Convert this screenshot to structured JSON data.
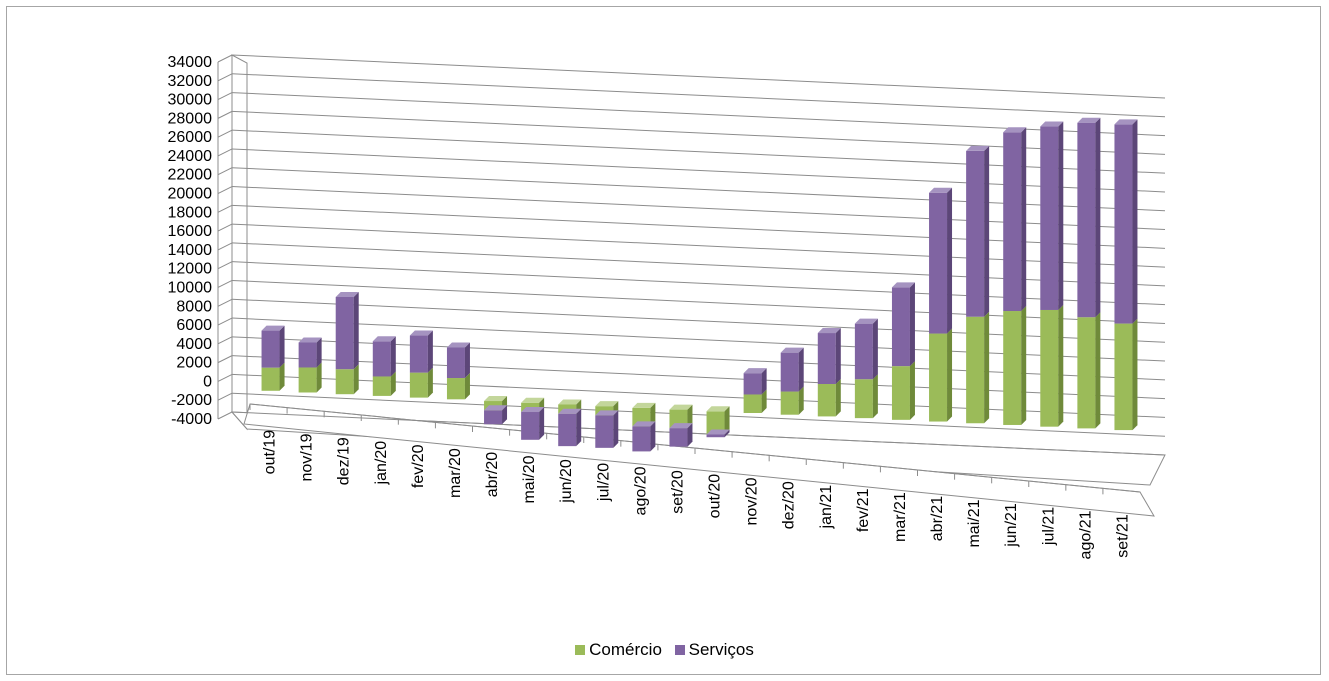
{
  "chart_data": {
    "type": "bar",
    "stacked": true,
    "three_d": true,
    "categories": [
      "out/19",
      "nov/19",
      "dez/19",
      "jan/20",
      "fev/20",
      "mar/20",
      "abr/20",
      "mai/20",
      "jun/20",
      "jul/20",
      "ago/20",
      "set/20",
      "out/20",
      "nov/20",
      "dez/20",
      "jan/21",
      "fev/21",
      "mar/21",
      "abr/21",
      "mai/21",
      "jun/21",
      "jul/21",
      "ago/21",
      "set/21"
    ],
    "series": [
      {
        "name": "Comércio",
        "color": "#9bbb59",
        "values": [
          2500,
          2700,
          2700,
          2100,
          2700,
          2300,
          -1000,
          -1000,
          -1000,
          -1000,
          -2000,
          -2000,
          -2500,
          2000,
          2500,
          3500,
          4200,
          5800,
          9500,
          11500,
          12300,
          12600,
          12000,
          11500
        ]
      },
      {
        "name": "Serviços",
        "color": "#8064a2",
        "values": [
          4000,
          2700,
          7800,
          3800,
          4000,
          3300,
          -1500,
          -3000,
          -3500,
          -3500,
          -2700,
          -2000,
          -300,
          2300,
          4200,
          5500,
          6000,
          8500,
          15200,
          17900,
          19300,
          19800,
          21000,
          21500
        ]
      }
    ],
    "y_ticks": [
      "34000",
      "32000",
      "30000",
      "28000",
      "26000",
      "24000",
      "22000",
      "20000",
      "18000",
      "16000",
      "14000",
      "12000",
      "10000",
      "8000",
      "6000",
      "4000",
      "2000",
      "0",
      "-2000",
      "-4000"
    ],
    "ylim": [
      -4000,
      34000
    ],
    "grid": true,
    "legend_position": "bottom"
  }
}
